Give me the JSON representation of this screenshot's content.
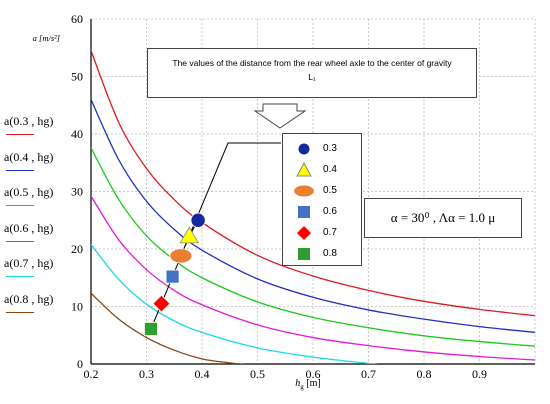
{
  "chart_data": {
    "type": "line",
    "y_axis_title": "a [m/s²]",
    "x_axis_title": "h",
    "x_axis_title_sub": "g",
    "x_axis_title_unit": " [m]",
    "xlim": [
      0.2,
      1.0
    ],
    "ylim": [
      0,
      60
    ],
    "x_ticks": [
      "0.2",
      "0.3",
      "0.4",
      "0.5",
      "0.6",
      "0.7",
      "0.8",
      "0.9"
    ],
    "y_ticks": [
      "0",
      "10",
      "20",
      "30",
      "40",
      "50",
      "60"
    ],
    "grid": true,
    "series": [
      {
        "name": "a(0.3 , hg)",
        "color": "#e0191f",
        "points": [
          [
            0.2,
            54.5
          ],
          [
            0.25,
            42
          ],
          [
            0.3,
            34
          ],
          [
            0.35,
            28.6
          ],
          [
            0.4,
            24.6
          ],
          [
            0.5,
            18.9
          ],
          [
            0.6,
            15.3
          ],
          [
            0.7,
            12.8
          ],
          [
            0.8,
            10.9
          ],
          [
            0.9,
            9.5
          ],
          [
            1.0,
            8.4
          ]
        ]
      },
      {
        "name": "a(0.4 , hg)",
        "color": "#1f2fc0",
        "points": [
          [
            0.2,
            46
          ],
          [
            0.25,
            35.5
          ],
          [
            0.3,
            28.3
          ],
          [
            0.35,
            23.4
          ],
          [
            0.4,
            19.8
          ],
          [
            0.5,
            14.8
          ],
          [
            0.6,
            11.6
          ],
          [
            0.7,
            9.4
          ],
          [
            0.8,
            7.8
          ],
          [
            0.9,
            6.5
          ],
          [
            1.0,
            5.5
          ]
        ]
      },
      {
        "name": "a(0.5 , hg)",
        "color": "#1ec81e",
        "points": [
          [
            0.2,
            37.6
          ],
          [
            0.25,
            28.6
          ],
          [
            0.3,
            22.3
          ],
          [
            0.35,
            18.1
          ],
          [
            0.4,
            15
          ],
          [
            0.5,
            10.8
          ],
          [
            0.6,
            8.1
          ],
          [
            0.7,
            6.3
          ],
          [
            0.8,
            4.9
          ],
          [
            0.9,
            3.9
          ],
          [
            1.0,
            3.1
          ]
        ]
      },
      {
        "name": "a(0.6 , hg)",
        "color": "#e619d6",
        "points": [
          [
            0.2,
            29.2
          ],
          [
            0.25,
            21.6
          ],
          [
            0.3,
            16.4
          ],
          [
            0.35,
            12.8
          ],
          [
            0.4,
            10.3
          ],
          [
            0.5,
            6.8
          ],
          [
            0.6,
            4.6
          ],
          [
            0.7,
            3.2
          ],
          [
            0.8,
            2.1
          ],
          [
            0.9,
            1.3
          ],
          [
            1.0,
            0.7
          ]
        ]
      },
      {
        "name": "a(0.7 , hg)",
        "color": "#19d9e6",
        "points": [
          [
            0.2,
            20.8
          ],
          [
            0.25,
            14.7
          ],
          [
            0.3,
            10.4
          ],
          [
            0.35,
            7.5
          ],
          [
            0.4,
            5.5
          ],
          [
            0.5,
            2.8
          ],
          [
            0.6,
            1.2
          ],
          [
            0.7,
            0.1
          ],
          [
            0.75,
            -0.5
          ]
        ]
      },
      {
        "name": "a(0.8 , hg)",
        "color": "#8b4513",
        "points": [
          [
            0.2,
            12.3
          ],
          [
            0.25,
            7.8
          ],
          [
            0.3,
            4.6
          ],
          [
            0.35,
            2.4
          ],
          [
            0.4,
            0.9
          ],
          [
            0.45,
            0.2
          ],
          [
            0.5,
            -0.3
          ]
        ]
      }
    ],
    "markers": [
      {
        "label": "0.3",
        "shape": "circle",
        "color": "#1428a0",
        "x": 0.393,
        "y": 25.0
      },
      {
        "label": "0.4",
        "shape": "triangle",
        "color": "#ffff00",
        "x": 0.377,
        "y": 22.2
      },
      {
        "label": "0.5",
        "shape": "ellipse",
        "color": "#ed7d31",
        "x": 0.362,
        "y": 18.8
      },
      {
        "label": "0.6",
        "shape": "square",
        "color": "#4472c4",
        "x": 0.347,
        "y": 15.2
      },
      {
        "label": "0.7",
        "shape": "diamond",
        "color": "#ff0000",
        "x": 0.327,
        "y": 10.5
      },
      {
        "label": "0.8",
        "shape": "square",
        "color": "#2e9e2e",
        "x": 0.308,
        "y": 6.1
      }
    ]
  },
  "callout": {
    "line1": "The values of the distance from the rear wheel axle to the center of gravity",
    "line2": "L₁"
  },
  "annotation": "α = 30⁰ , Λα = 1.0 μ",
  "legend_colors": {
    "line": "#000000"
  }
}
